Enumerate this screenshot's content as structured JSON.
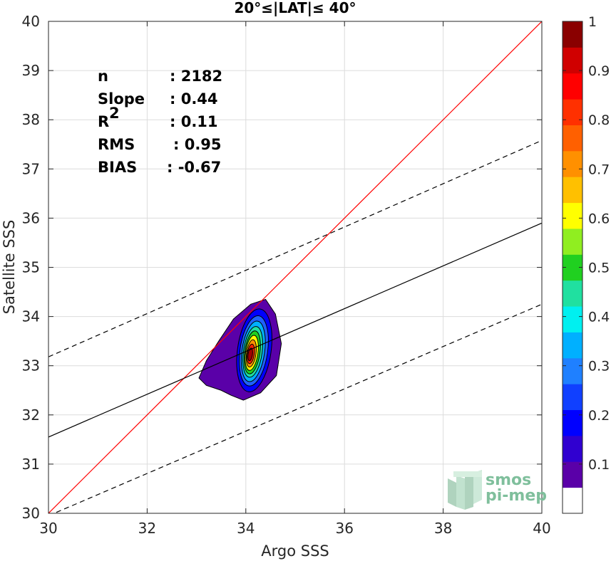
{
  "chart_data": {
    "type": "scatter",
    "title": "20°≤|LAT|≤ 40°",
    "xlabel": "Argo SSS",
    "ylabel": "Satellite SSS",
    "xlim": [
      30,
      40
    ],
    "ylim": [
      30,
      40
    ],
    "xticks": [
      "30",
      "32",
      "34",
      "36",
      "38",
      "40"
    ],
    "yticks": [
      "30",
      "31",
      "32",
      "33",
      "34",
      "35",
      "36",
      "37",
      "38",
      "39",
      "40"
    ],
    "grid": true,
    "stats": [
      {
        "name": "n",
        "value": ": 2182"
      },
      {
        "name": "Slope",
        "value": ": 0.44"
      },
      {
        "name": "R",
        "sup": "2",
        "value": ": 0.11"
      },
      {
        "name": "RMS",
        "value": ": 0.95"
      },
      {
        "name": "BIAS",
        "value": ": -0.67"
      }
    ],
    "lines": [
      {
        "name": "identity",
        "color": "#ff0000",
        "style": "solid",
        "x": [
          30,
          40
        ],
        "y": [
          30,
          40
        ]
      },
      {
        "name": "regression",
        "color": "#000000",
        "style": "solid",
        "x": [
          30,
          40
        ],
        "y": [
          31.55,
          35.9
        ]
      },
      {
        "name": "upper-bound",
        "color": "#000000",
        "style": "dashed",
        "x": [
          30,
          40
        ],
        "y": [
          33.18,
          37.58
        ]
      },
      {
        "name": "lower-bound",
        "color": "#000000",
        "style": "dashed",
        "x": [
          30,
          40
        ],
        "y": [
          29.95,
          34.25
        ]
      }
    ],
    "density_contours": {
      "center": [
        34.08,
        33.22
      ],
      "levels": [
        0.05,
        0.15,
        0.25,
        0.35,
        0.45,
        0.55,
        0.65,
        0.75,
        0.85,
        0.95
      ],
      "colors": [
        "#5a00a8",
        "#0000ff",
        "#1f60ff",
        "#00b0ff",
        "#20e0a0",
        "#20d020",
        "#ffff00",
        "#ff9000",
        "#ff2000",
        "#a00000"
      ],
      "outer_boundary": [
        [
          33.05,
          32.75
        ],
        [
          33.2,
          33.1
        ],
        [
          33.45,
          33.5
        ],
        [
          33.75,
          33.95
        ],
        [
          34.1,
          34.25
        ],
        [
          34.4,
          34.35
        ],
        [
          34.6,
          34.05
        ],
        [
          34.72,
          33.45
        ],
        [
          34.62,
          32.8
        ],
        [
          34.3,
          32.45
        ],
        [
          33.95,
          32.3
        ],
        [
          33.7,
          32.4
        ],
        [
          33.5,
          32.5
        ],
        [
          33.2,
          32.6
        ]
      ],
      "level_rx": [
        0.82,
        0.68,
        0.56,
        0.46,
        0.38,
        0.31,
        0.25,
        0.19,
        0.14,
        0.09
      ],
      "level_ry": [
        1.0,
        0.85,
        0.72,
        0.62,
        0.52,
        0.44,
        0.36,
        0.28,
        0.2,
        0.13
      ]
    },
    "colorbar": {
      "min": 0,
      "max": 1,
      "levels": 14,
      "colors": [
        "#ffffff",
        "#5a00a8",
        "#3000d0",
        "#0000ff",
        "#1040ff",
        "#1f80ff",
        "#00b0ff",
        "#00f0f0",
        "#20e0a0",
        "#20d020",
        "#90ee20",
        "#ffff00",
        "#ffc000",
        "#ff9000",
        "#ff6000",
        "#ff3000",
        "#ff0000",
        "#d00000",
        "#8a0000"
      ],
      "ticks": [
        "0.1",
        "0.2",
        "0.3",
        "0.4",
        "0.5",
        "0.6",
        "0.7",
        "0.8",
        "0.9",
        "1"
      ],
      "tick_values": [
        0.1,
        0.2,
        0.3,
        0.4,
        0.5,
        0.6,
        0.7,
        0.8,
        0.9,
        1.0
      ]
    },
    "watermark": [
      "smos",
      "pi-mep"
    ]
  }
}
